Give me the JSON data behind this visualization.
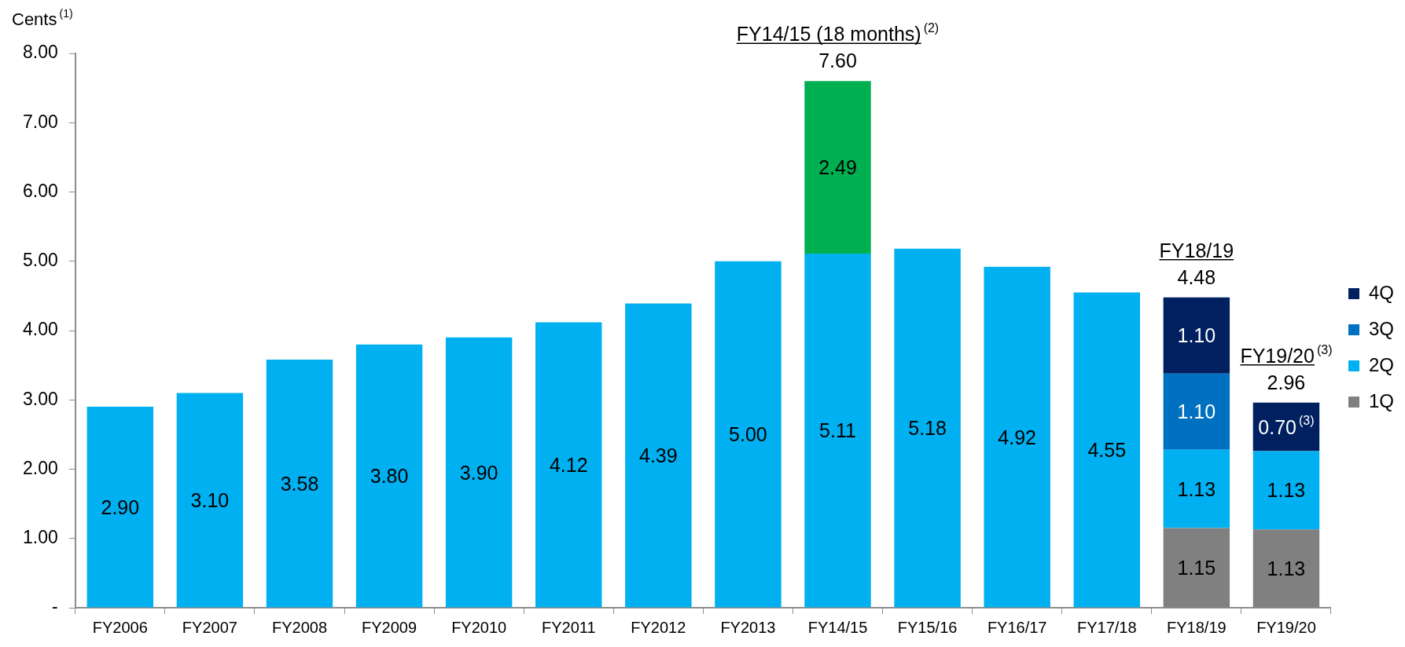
{
  "chart_data": {
    "type": "bar",
    "stacked": true,
    "ylabel": "Cents$^{(1)}$",
    "categories": [
      "FY2006",
      "FY2007",
      "FY2008",
      "FY2009",
      "FY2010",
      "FY2011",
      "FY2012",
      "FY2013",
      "FY14/15",
      "FY15/16",
      "FY16/17",
      "FY17/18",
      "FY18/19",
      "FY19/20"
    ],
    "series": [
      {
        "color": "#00b0f0",
        "values": [
          2.9,
          3.1,
          3.58,
          3.8,
          3.9,
          4.12,
          4.39,
          5.0,
          5.11,
          5.18,
          4.92,
          4.55,
          null,
          null
        ],
        "value_labels": [
          "2.90",
          "3.10",
          "3.58",
          "3.80",
          "3.90",
          "4.12",
          "4.39",
          "5.00",
          "5.11",
          "5.18",
          "4.92",
          "4.55",
          null,
          null
        ]
      },
      {
        "color": "#00b050",
        "values": [
          null,
          null,
          null,
          null,
          null,
          null,
          null,
          null,
          2.49,
          null,
          null,
          null,
          null,
          null
        ],
        "value_labels": [
          null,
          null,
          null,
          null,
          null,
          null,
          null,
          null,
          "2.49",
          null,
          null,
          null,
          null,
          null
        ]
      },
      {
        "name": "1Q",
        "color": "#808080",
        "values": [
          null,
          null,
          null,
          null,
          null,
          null,
          null,
          null,
          null,
          null,
          null,
          null,
          1.15,
          1.13
        ],
        "value_labels": [
          null,
          null,
          null,
          null,
          null,
          null,
          null,
          null,
          null,
          null,
          null,
          null,
          "1.15",
          "1.13"
        ]
      },
      {
        "name": "2Q",
        "color": "#00b0f0",
        "values": [
          null,
          null,
          null,
          null,
          null,
          null,
          null,
          null,
          null,
          null,
          null,
          null,
          1.13,
          1.13
        ],
        "value_labels": [
          null,
          null,
          null,
          null,
          null,
          null,
          null,
          null,
          null,
          null,
          null,
          null,
          "1.13",
          "1.13"
        ]
      },
      {
        "name": "3Q",
        "color": "#0070c0",
        "values": [
          null,
          null,
          null,
          null,
          null,
          null,
          null,
          null,
          null,
          null,
          null,
          null,
          1.1,
          null
        ],
        "value_labels": [
          null,
          null,
          null,
          null,
          null,
          null,
          null,
          null,
          null,
          null,
          null,
          null,
          "1.10",
          null
        ]
      },
      {
        "name": "4Q",
        "color": "#002060",
        "values": [
          null,
          null,
          null,
          null,
          null,
          null,
          null,
          null,
          null,
          null,
          null,
          null,
          1.1,
          0.7
        ],
        "value_labels": [
          null,
          null,
          null,
          null,
          null,
          null,
          null,
          null,
          null,
          null,
          null,
          null,
          "1.10",
          "0.70$^{(3)}$"
        ]
      }
    ],
    "totals": [
      null,
      null,
      null,
      null,
      null,
      null,
      null,
      null,
      "7.60",
      null,
      null,
      null,
      "4.48",
      "2.96"
    ],
    "annotations": [
      {
        "text": "FY14/15 (18 months)$^{(2)}$",
        "x": "FY14/15",
        "y": 7.6
      },
      {
        "text": "FY18/19",
        "x": "FY18/19",
        "y": 4.48
      },
      {
        "text": "FY19/20$^{(3)}$",
        "x": "FY19/20",
        "y": 2.96
      }
    ],
    "ylim": [
      0,
      8
    ],
    "yticks": [
      {
        "value": 0,
        "label": "-"
      },
      {
        "value": 1,
        "label": "1.00"
      },
      {
        "value": 2,
        "label": "2.00"
      },
      {
        "value": 3,
        "label": "3.00"
      },
      {
        "value": 4,
        "label": "4.00"
      },
      {
        "value": 5,
        "label": "5.00"
      },
      {
        "value": 6,
        "label": "6.00"
      },
      {
        "value": 7,
        "label": "7.00"
      },
      {
        "value": 8,
        "label": "8.00"
      }
    ],
    "grid": false,
    "legend": "right"
  }
}
